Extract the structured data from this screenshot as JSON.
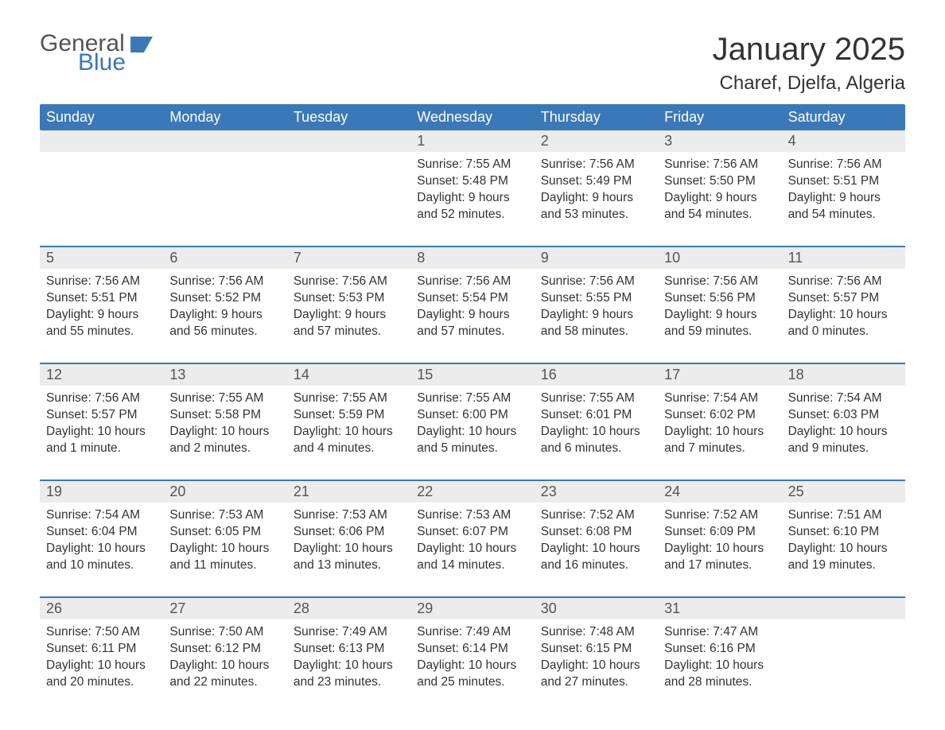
{
  "logo": {
    "word1": "General",
    "word2": "Blue"
  },
  "title": "January 2025",
  "location": "Charef, Djelfa, Algeria",
  "colors": {
    "brand": "#3b78b8",
    "header_text": "#ffffff",
    "daynum_bg": "#ececec",
    "body_text": "#333333",
    "muted_text": "#555555",
    "background": "#ffffff"
  },
  "weekdays": [
    "Sunday",
    "Monday",
    "Tuesday",
    "Wednesday",
    "Thursday",
    "Friday",
    "Saturday"
  ],
  "weeks": [
    [
      null,
      null,
      null,
      {
        "n": "1",
        "sunrise": "Sunrise: 7:55 AM",
        "sunset": "Sunset: 5:48 PM",
        "d1": "Daylight: 9 hours",
        "d2": "and 52 minutes."
      },
      {
        "n": "2",
        "sunrise": "Sunrise: 7:56 AM",
        "sunset": "Sunset: 5:49 PM",
        "d1": "Daylight: 9 hours",
        "d2": "and 53 minutes."
      },
      {
        "n": "3",
        "sunrise": "Sunrise: 7:56 AM",
        "sunset": "Sunset: 5:50 PM",
        "d1": "Daylight: 9 hours",
        "d2": "and 54 minutes."
      },
      {
        "n": "4",
        "sunrise": "Sunrise: 7:56 AM",
        "sunset": "Sunset: 5:51 PM",
        "d1": "Daylight: 9 hours",
        "d2": "and 54 minutes."
      }
    ],
    [
      {
        "n": "5",
        "sunrise": "Sunrise: 7:56 AM",
        "sunset": "Sunset: 5:51 PM",
        "d1": "Daylight: 9 hours",
        "d2": "and 55 minutes."
      },
      {
        "n": "6",
        "sunrise": "Sunrise: 7:56 AM",
        "sunset": "Sunset: 5:52 PM",
        "d1": "Daylight: 9 hours",
        "d2": "and 56 minutes."
      },
      {
        "n": "7",
        "sunrise": "Sunrise: 7:56 AM",
        "sunset": "Sunset: 5:53 PM",
        "d1": "Daylight: 9 hours",
        "d2": "and 57 minutes."
      },
      {
        "n": "8",
        "sunrise": "Sunrise: 7:56 AM",
        "sunset": "Sunset: 5:54 PM",
        "d1": "Daylight: 9 hours",
        "d2": "and 57 minutes."
      },
      {
        "n": "9",
        "sunrise": "Sunrise: 7:56 AM",
        "sunset": "Sunset: 5:55 PM",
        "d1": "Daylight: 9 hours",
        "d2": "and 58 minutes."
      },
      {
        "n": "10",
        "sunrise": "Sunrise: 7:56 AM",
        "sunset": "Sunset: 5:56 PM",
        "d1": "Daylight: 9 hours",
        "d2": "and 59 minutes."
      },
      {
        "n": "11",
        "sunrise": "Sunrise: 7:56 AM",
        "sunset": "Sunset: 5:57 PM",
        "d1": "Daylight: 10 hours",
        "d2": "and 0 minutes."
      }
    ],
    [
      {
        "n": "12",
        "sunrise": "Sunrise: 7:56 AM",
        "sunset": "Sunset: 5:57 PM",
        "d1": "Daylight: 10 hours",
        "d2": "and 1 minute."
      },
      {
        "n": "13",
        "sunrise": "Sunrise: 7:55 AM",
        "sunset": "Sunset: 5:58 PM",
        "d1": "Daylight: 10 hours",
        "d2": "and 2 minutes."
      },
      {
        "n": "14",
        "sunrise": "Sunrise: 7:55 AM",
        "sunset": "Sunset: 5:59 PM",
        "d1": "Daylight: 10 hours",
        "d2": "and 4 minutes."
      },
      {
        "n": "15",
        "sunrise": "Sunrise: 7:55 AM",
        "sunset": "Sunset: 6:00 PM",
        "d1": "Daylight: 10 hours",
        "d2": "and 5 minutes."
      },
      {
        "n": "16",
        "sunrise": "Sunrise: 7:55 AM",
        "sunset": "Sunset: 6:01 PM",
        "d1": "Daylight: 10 hours",
        "d2": "and 6 minutes."
      },
      {
        "n": "17",
        "sunrise": "Sunrise: 7:54 AM",
        "sunset": "Sunset: 6:02 PM",
        "d1": "Daylight: 10 hours",
        "d2": "and 7 minutes."
      },
      {
        "n": "18",
        "sunrise": "Sunrise: 7:54 AM",
        "sunset": "Sunset: 6:03 PM",
        "d1": "Daylight: 10 hours",
        "d2": "and 9 minutes."
      }
    ],
    [
      {
        "n": "19",
        "sunrise": "Sunrise: 7:54 AM",
        "sunset": "Sunset: 6:04 PM",
        "d1": "Daylight: 10 hours",
        "d2": "and 10 minutes."
      },
      {
        "n": "20",
        "sunrise": "Sunrise: 7:53 AM",
        "sunset": "Sunset: 6:05 PM",
        "d1": "Daylight: 10 hours",
        "d2": "and 11 minutes."
      },
      {
        "n": "21",
        "sunrise": "Sunrise: 7:53 AM",
        "sunset": "Sunset: 6:06 PM",
        "d1": "Daylight: 10 hours",
        "d2": "and 13 minutes."
      },
      {
        "n": "22",
        "sunrise": "Sunrise: 7:53 AM",
        "sunset": "Sunset: 6:07 PM",
        "d1": "Daylight: 10 hours",
        "d2": "and 14 minutes."
      },
      {
        "n": "23",
        "sunrise": "Sunrise: 7:52 AM",
        "sunset": "Sunset: 6:08 PM",
        "d1": "Daylight: 10 hours",
        "d2": "and 16 minutes."
      },
      {
        "n": "24",
        "sunrise": "Sunrise: 7:52 AM",
        "sunset": "Sunset: 6:09 PM",
        "d1": "Daylight: 10 hours",
        "d2": "and 17 minutes."
      },
      {
        "n": "25",
        "sunrise": "Sunrise: 7:51 AM",
        "sunset": "Sunset: 6:10 PM",
        "d1": "Daylight: 10 hours",
        "d2": "and 19 minutes."
      }
    ],
    [
      {
        "n": "26",
        "sunrise": "Sunrise: 7:50 AM",
        "sunset": "Sunset: 6:11 PM",
        "d1": "Daylight: 10 hours",
        "d2": "and 20 minutes."
      },
      {
        "n": "27",
        "sunrise": "Sunrise: 7:50 AM",
        "sunset": "Sunset: 6:12 PM",
        "d1": "Daylight: 10 hours",
        "d2": "and 22 minutes."
      },
      {
        "n": "28",
        "sunrise": "Sunrise: 7:49 AM",
        "sunset": "Sunset: 6:13 PM",
        "d1": "Daylight: 10 hours",
        "d2": "and 23 minutes."
      },
      {
        "n": "29",
        "sunrise": "Sunrise: 7:49 AM",
        "sunset": "Sunset: 6:14 PM",
        "d1": "Daylight: 10 hours",
        "d2": "and 25 minutes."
      },
      {
        "n": "30",
        "sunrise": "Sunrise: 7:48 AM",
        "sunset": "Sunset: 6:15 PM",
        "d1": "Daylight: 10 hours",
        "d2": "and 27 minutes."
      },
      {
        "n": "31",
        "sunrise": "Sunrise: 7:47 AM",
        "sunset": "Sunset: 6:16 PM",
        "d1": "Daylight: 10 hours",
        "d2": "and 28 minutes."
      },
      null
    ]
  ]
}
